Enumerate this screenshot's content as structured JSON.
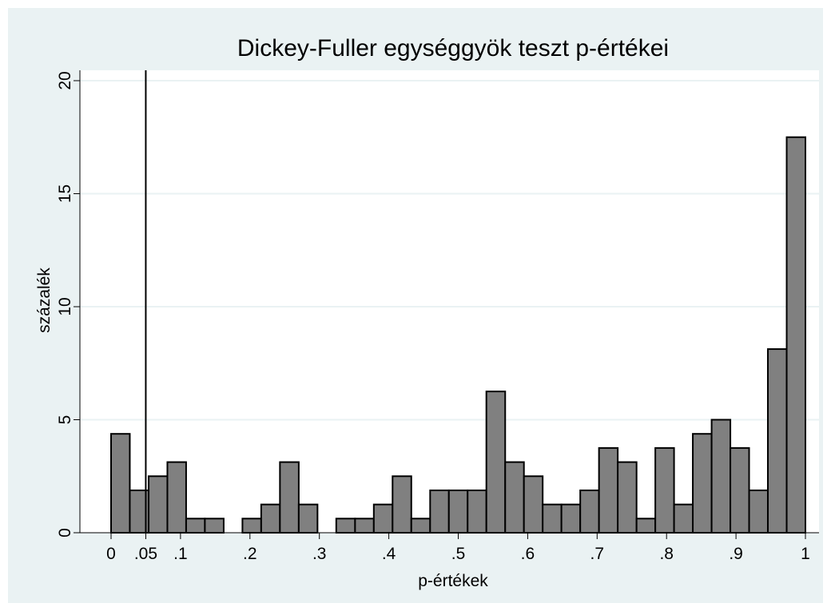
{
  "chart_data": {
    "type": "histogram",
    "title": "Dickey-Fuller egységgyök teszt p-értékei",
    "x_label": "p-értékek",
    "y_label": "százalék",
    "bins": [
      0,
      0.027,
      0.0541,
      0.0811,
      0.1081,
      0.1351,
      0.1622,
      0.1892,
      0.2162,
      0.2432,
      0.2703,
      0.2973,
      0.3243,
      0.3514,
      0.3784,
      0.4054,
      0.4324,
      0.4595,
      0.4865,
      0.5135,
      0.5405,
      0.5676,
      0.5946,
      0.6216,
      0.6486,
      0.6757,
      0.7027,
      0.7297,
      0.7568,
      0.7838,
      0.8108,
      0.8378,
      0.8649,
      0.8919,
      0.9189,
      0.9459,
      0.973,
      1
    ],
    "values": [
      4.375,
      1.875,
      2.5,
      3.125,
      0.625,
      0.625,
      0,
      0.625,
      1.25,
      3.125,
      1.25,
      0,
      0.625,
      0.625,
      1.25,
      2.5,
      0.625,
      1.875,
      1.875,
      1.875,
      6.25,
      3.125,
      2.5,
      1.25,
      1.25,
      1.875,
      3.75,
      3.125,
      0.625,
      3.75,
      1.25,
      4.375,
      5,
      3.75,
      1.875,
      8.125,
      17.5
    ],
    "color": "#808080",
    "xline": 0.05,
    "xlim": [
      0,
      1
    ],
    "xticks": [
      0,
      {
        "value": 0.05,
        "label": ".05"
      },
      {
        "value": 0.1,
        "label": ".1"
      },
      {
        "value": 0.2,
        "label": ".2"
      },
      {
        "value": 0.3,
        "label": ".3"
      },
      {
        "value": 0.4,
        "label": ".4"
      },
      {
        "value": 0.5,
        "label": ".5"
      },
      {
        "value": 0.6,
        "label": ".6"
      },
      {
        "value": 0.7,
        "label": ".7"
      },
      {
        "value": 0.8,
        "label": ".8"
      },
      {
        "value": 0.9,
        "label": ".9"
      },
      1
    ],
    "ylim": [
      0,
      20
    ],
    "yticks": [
      0,
      5,
      10,
      15,
      20
    ],
    "grid": true
  }
}
